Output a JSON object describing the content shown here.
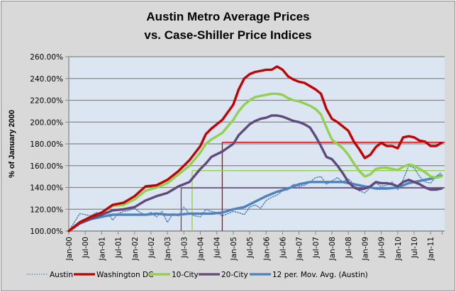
{
  "chart_data": {
    "type": "line",
    "title": "Austin Metro Average Prices",
    "subtitle": "vs. Case-Shiller Price Indices",
    "ylabel": "% of January 2000",
    "xlabel": "",
    "ylim": [
      100,
      260
    ],
    "y_ticks": [
      "100.00%",
      "120.00%",
      "140.00%",
      "160.00%",
      "180.00%",
      "200.00%",
      "220.00%",
      "240.00%",
      "260.00%"
    ],
    "y_tick_values": [
      100,
      120,
      140,
      160,
      180,
      200,
      220,
      240,
      260
    ],
    "x_ticks": [
      "Jan-00",
      "Jul-00",
      "Jan-01",
      "Jul-01",
      "Jan-02",
      "Jul-02",
      "Jan-03",
      "Jul-03",
      "Jan-04",
      "Jul-04",
      "Jan-05",
      "Jul-05",
      "Jan-06",
      "Jul-06",
      "Jan-07",
      "Jul-07",
      "Jan-08",
      "Jul-08",
      "Jan-09",
      "Jul-09",
      "Jan-10",
      "Jul-10",
      "Jan-11"
    ],
    "x_tick_months": [
      0,
      6,
      12,
      18,
      24,
      30,
      36,
      42,
      48,
      54,
      60,
      66,
      72,
      78,
      84,
      90,
      96,
      102,
      108,
      114,
      120,
      126,
      132
    ],
    "x_range_months": [
      0,
      137
    ],
    "grid": true,
    "legend": "bottom",
    "series": [
      {
        "name": "Austin",
        "color": "#4f81bd",
        "style": "dotted",
        "x": [
          0,
          2,
          4,
          6,
          8,
          10,
          12,
          14,
          16,
          18,
          20,
          22,
          24,
          26,
          28,
          30,
          32,
          34,
          36,
          38,
          40,
          42,
          44,
          46,
          48,
          50,
          52,
          54,
          56,
          58,
          60,
          62,
          64,
          66,
          68,
          70,
          72,
          74,
          76,
          78,
          80,
          82,
          84,
          86,
          88,
          90,
          92,
          94,
          96,
          98,
          100,
          102,
          104,
          106,
          108,
          110,
          112,
          114,
          116,
          118,
          120,
          122,
          124,
          126,
          128,
          130,
          132,
          134,
          136
        ],
        "values": [
          100,
          108,
          116,
          115,
          114,
          117,
          115,
          118,
          110,
          116,
          118,
          119,
          121,
          117,
          115,
          117,
          113,
          118,
          108,
          116,
          114,
          122,
          116,
          114,
          113,
          120,
          118,
          117,
          114,
          116,
          118,
          117,
          115,
          122,
          124,
          121,
          128,
          131,
          133,
          137,
          138,
          143,
          141,
          142,
          145,
          149,
          150,
          143,
          146,
          149,
          145,
          148,
          143,
          137,
          135,
          140,
          144,
          141,
          142,
          145,
          138,
          147,
          160,
          158,
          150,
          145,
          144,
          150,
          154
        ]
      },
      {
        "name": "Washington DC",
        "color": "#c00000",
        "style": "solid",
        "x": [
          0,
          4,
          8,
          12,
          16,
          20,
          24,
          28,
          32,
          36,
          40,
          44,
          48,
          50,
          52,
          56,
          60,
          62,
          64,
          66,
          68,
          70,
          72,
          74,
          76,
          78,
          80,
          82,
          84,
          86,
          88,
          90,
          92,
          94,
          96,
          98,
          100,
          102,
          104,
          106,
          108,
          110,
          112,
          114,
          116,
          118,
          120,
          122,
          124,
          126,
          128,
          130,
          132,
          134,
          136
        ],
        "values": [
          100,
          108,
          113,
          117,
          124,
          126,
          132,
          141,
          142,
          147,
          155,
          165,
          178,
          189,
          194,
          202,
          216,
          230,
          240,
          244,
          246,
          247,
          248,
          248,
          251,
          248,
          242,
          239,
          237,
          236,
          233,
          230,
          226,
          212,
          203,
          200,
          196,
          192,
          182,
          175,
          167,
          170,
          177,
          181,
          178,
          178,
          176,
          186,
          187,
          186,
          183,
          182,
          178,
          178,
          181
        ]
      },
      {
        "name": "10-City",
        "color": "#92d050",
        "style": "solid",
        "x": [
          0,
          4,
          8,
          12,
          16,
          20,
          24,
          28,
          32,
          36,
          40,
          44,
          48,
          50,
          52,
          56,
          60,
          62,
          64,
          66,
          68,
          70,
          72,
          74,
          76,
          78,
          80,
          82,
          84,
          86,
          88,
          90,
          92,
          94,
          96,
          98,
          100,
          102,
          104,
          106,
          108,
          110,
          112,
          114,
          116,
          118,
          120,
          122,
          124,
          126,
          128,
          130,
          132,
          134,
          136
        ],
        "values": [
          100,
          108,
          113,
          117,
          123,
          124,
          129,
          137,
          140,
          144,
          152,
          160,
          172,
          180,
          184,
          190,
          202,
          210,
          216,
          220,
          223,
          224,
          225,
          226,
          226,
          225,
          222,
          220,
          219,
          217,
          215,
          212,
          207,
          195,
          184,
          180,
          176,
          170,
          162,
          155,
          150,
          152,
          157,
          158,
          158,
          157,
          156,
          159,
          161,
          160,
          157,
          154,
          150,
          149,
          150
        ]
      },
      {
        "name": "20-City",
        "color": "#604a7b",
        "style": "solid",
        "x": [
          0,
          4,
          8,
          12,
          16,
          20,
          24,
          28,
          32,
          36,
          40,
          44,
          48,
          50,
          52,
          56,
          60,
          62,
          64,
          66,
          68,
          70,
          72,
          74,
          76,
          78,
          80,
          82,
          84,
          86,
          88,
          90,
          92,
          94,
          96,
          98,
          100,
          102,
          104,
          106,
          108,
          110,
          112,
          114,
          116,
          118,
          120,
          122,
          124,
          126,
          128,
          130,
          132,
          134,
          136
        ],
        "values": [
          100,
          107,
          111,
          115,
          119,
          120,
          122,
          128,
          132,
          135,
          141,
          145,
          157,
          162,
          168,
          173,
          180,
          188,
          193,
          198,
          201,
          203,
          204,
          206,
          206,
          205,
          203,
          201,
          200,
          198,
          195,
          187,
          178,
          168,
          166,
          160,
          153,
          145,
          140,
          138,
          139,
          141,
          145,
          144,
          144,
          143,
          141,
          145,
          147,
          145,
          143,
          140,
          138,
          138,
          139
        ]
      },
      {
        "name": "12 per. Mov. Avg. (Austin)",
        "color": "#4f81bd",
        "style": "solid",
        "x": [
          0,
          4,
          8,
          12,
          16,
          20,
          24,
          28,
          32,
          36,
          40,
          44,
          48,
          52,
          56,
          60,
          64,
          68,
          72,
          76,
          80,
          84,
          88,
          92,
          96,
          100,
          104,
          108,
          112,
          116,
          120,
          124,
          128,
          132,
          136
        ],
        "values": [
          100,
          107,
          111,
          113,
          115,
          115,
          115,
          115,
          116,
          115,
          115,
          116,
          116,
          116,
          117,
          120,
          122,
          127,
          132,
          136,
          139,
          143,
          145,
          145,
          145,
          145,
          143,
          141,
          139,
          139,
          140,
          144,
          146,
          148,
          151
        ]
      }
    ],
    "reference_lines": [
      {
        "color": "#c00000",
        "month": 56,
        "value": 181.5
      },
      {
        "color": "#92d050",
        "month": 45,
        "value": 155.5
      },
      {
        "color": "#604a7b",
        "month": 41,
        "value": 139.5
      }
    ]
  }
}
